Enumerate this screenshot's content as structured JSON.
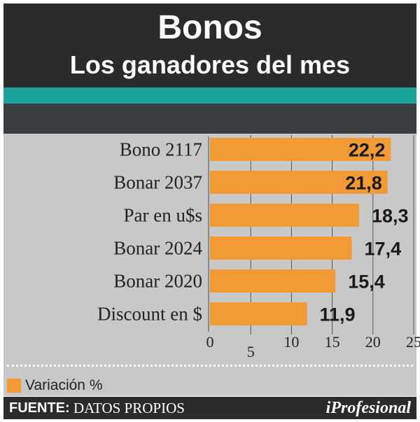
{
  "header": {
    "title": "Bonos",
    "subtitle": "Los ganadores del mes"
  },
  "chart_data": {
    "type": "bar",
    "orientation": "horizontal",
    "categories": [
      "Bono 2117",
      "Bonar 2037",
      "Par en u$s",
      "Bonar 2024",
      "Bonar 2020",
      "Discount en $"
    ],
    "values": [
      22.2,
      21.8,
      18.3,
      17.4,
      15.4,
      11.9
    ],
    "value_labels": [
      "22,2",
      "21,8",
      "18,3",
      "17,4",
      "15,4",
      "11,9"
    ],
    "xlim": [
      0,
      25
    ],
    "xticks": [
      0,
      5,
      10,
      15,
      20,
      25
    ],
    "xtick_labels": [
      "0",
      "5",
      "10",
      "15",
      "20",
      "25"
    ],
    "grid": "vertical",
    "bar_color": "#f29a35",
    "legend": {
      "label": "Variación %",
      "position": "bottom-left"
    }
  },
  "footer": {
    "source_label": "FUENTE:",
    "source_text": "DATOS PROPIOS",
    "logo": "iProfesional"
  },
  "colors": {
    "header_bg": "#2b2b2b",
    "accent": "#1aa39d",
    "band": "#3b3e40",
    "plot_bg": "#c8c8c8",
    "bar": "#f29a35"
  }
}
